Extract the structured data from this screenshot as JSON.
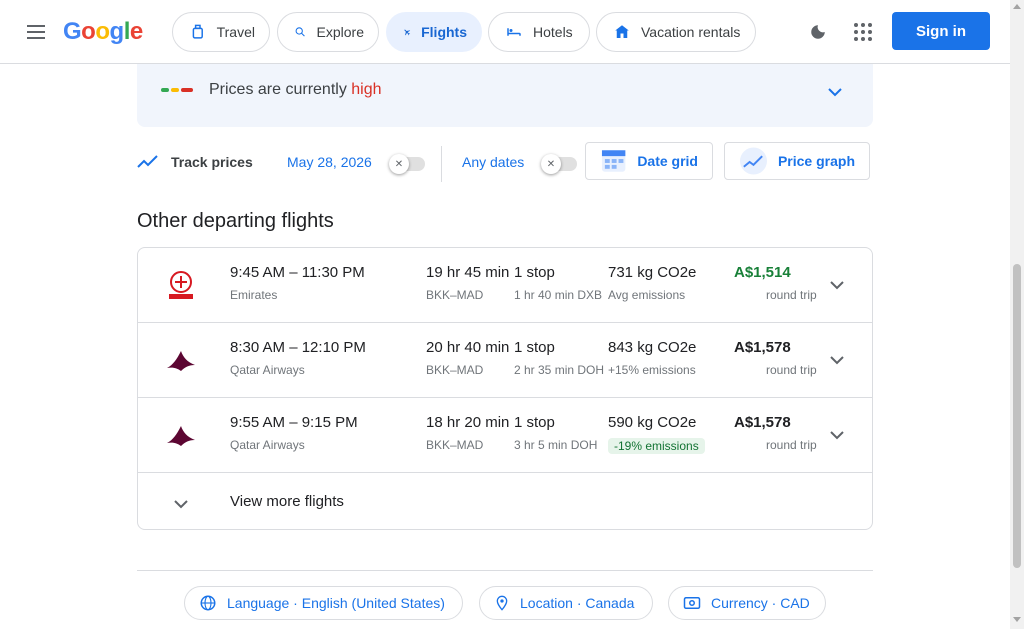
{
  "header": {
    "logo_text": "Google",
    "tabs": [
      {
        "label": "Travel",
        "icon": "travel-icon"
      },
      {
        "label": "Explore",
        "icon": "explore-icon"
      },
      {
        "label": "Flights",
        "icon": "flight-icon"
      },
      {
        "label": "Hotels",
        "icon": "hotel-icon"
      },
      {
        "label": "Vacation rentals",
        "icon": "vacation-rental-icon"
      }
    ],
    "active_tab": "Flights",
    "sign_in_label": "Sign in"
  },
  "price_insight": {
    "prefix": "Prices are currently ",
    "level": "high"
  },
  "tracking": {
    "label": "Track prices",
    "date": "May 28, 2026",
    "any_dates": "Any dates",
    "date_grid_label": "Date grid",
    "price_graph_label": "Price graph"
  },
  "section_title": "Other departing flights",
  "flights": [
    {
      "airline_logo": "emirates-logo",
      "times": "9:45 AM – 11:30 PM",
      "airline": "Emirates",
      "duration": "19 hr 45 min",
      "route": "BKK–MAD",
      "stops": "1 stop",
      "stop_detail": "1 hr 40 min DXB",
      "co2": "731 kg CO2e",
      "co2_detail": "Avg emissions",
      "price": "A$1,514",
      "trip_type": "round trip"
    },
    {
      "airline_logo": "qatar-airways-logo",
      "times": "8:30 AM – 12:10 PM",
      "airline": "Qatar Airways",
      "duration": "20 hr 40 min",
      "route": "BKK–MAD",
      "stops": "1 stop",
      "stop_detail": "2 hr 35 min DOH",
      "co2": "843 kg CO2e",
      "co2_detail": "+15% emissions",
      "price": "A$1,578",
      "trip_type": "round trip"
    },
    {
      "airline_logo": "qatar-airways-logo",
      "times": "9:55 AM – 9:15 PM",
      "airline": "Qatar Airways",
      "duration": "18 hr 20 min",
      "route": "BKK–MAD",
      "stops": "1 stop",
      "stop_detail": "3 hr 5 min DOH",
      "co2": "590 kg CO2e",
      "co2_detail": "-19% emissions",
      "price": "A$1,578",
      "trip_type": "round trip"
    }
  ],
  "view_more_label": "View more flights",
  "footer": {
    "language": "Language · English (United States)",
    "location": "Location · Canada",
    "currency": "Currency · CAD"
  },
  "colors": {
    "accent": "#1a73e8",
    "price_high": "#d93025",
    "price_low": "#188038"
  }
}
